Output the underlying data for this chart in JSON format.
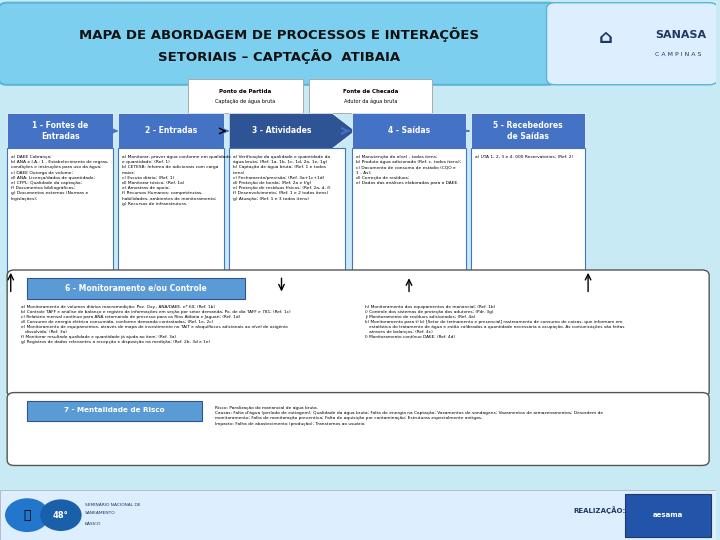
{
  "title_line1": "MAPA DE ABORDAGEM DE PROCESSOS E INTERAÇÕES",
  "title_line2": "SETORIAIS – CAPTAÇÃO  ATIBAIA",
  "bg_color": "#c8eaf5",
  "header_blue": "#4472c4",
  "header_dark_blue": "#2f5496",
  "arrow_blue": "#4472c4",
  "sanasa_blue": "#1f3864",
  "col1_text": "a) DAEE Cobrança;\nb) ANA e I.A.: 1 - Estabelecimento de regras,\ncondições e instruções para uso da água;\nc) DAEE Outorga de volume;\nd) ANA: Licença/dados de quantidade;\ne) CFPL: Qualidade da captação;\nf) Documentos bibliográficos;\ng) Documentos externos (Normas e\nlegislações);",
  "col2_text": "a) Monitorar, prover água conforme em qualidade\ne quantidade; (Ref. 1)\nb) CETESB: Informa de adicionais com carga\nmaior;\nc) Escuta diária; (Ref. 1)\nd) Monitorar tóxico; (Ref. 1a)\ne) Amostras de apoio;\nf) Recursos Humanos: competências,\nhabilidades, ambientes de monitoramento;\ng) Recursos de infraestrutura.",
  "col3_text": "a) Verificação da qualidade e quantidade da\nágua bruta; (Ref. 1a, 1b, 1c, 1d, 2a, 1e, 1g)\nb) Captação de água bruta; (Ref. 1 e todos\nitens)\nc) Fechamento/previsão; (Ref. 3a+1c+1d)\nd) Proteção de borda; (Ref. 2a e f/g)\ne) Proteção de resíduos físicos; (Ref. 2a, d, f)\nf) Desenvolvimento; (Ref. 1 e 2 todos itens)\ng) Atuação; (Ref. 1 e 3 todos itens)",
  "col4_text": "a) Manutenção do nível - todos itens;\nb) Produto água adicionado (Ref. c. todos itens);\nc) Documento de consumo de estádio (CQO e\n1 - As);\nd) Correção de resíduos;\ne) Dados das análises elaboradas para o DAEE.",
  "col5_text": "a) UTA 1, 2, 3 e 4: 000 Reservatórios; (Ref. 2)",
  "section6_label": "6 - Monitoramento e/ou Controle",
  "section6_text_left": "a) Monitoramento de volumes diários macromedição: Poz. Oxy., ANA/DAEE, nº 60; (Ref. 1b)\nb) Controle TAFF e análise de balanço e registro de informações em seção por setor demanda; Po. de dia TAFF e 781; (Ref. 1c)\nc) Relatório mensal contínuo para ANA retornando de processo para os Rios Atibaia e Jaguari; (Ref. 1d)\nd) Consumo de energia elétrica consumida, conforme demanda contratadas; (Ref. 1e, 2c)\ne) Monitoramento de equipamentos, através de mapa de investimento no TAIT e aloquiflocos adicionais ao nível de oxigênio\n   dissolvido; (Ref. 3a)\nf) Monitorar resultado qualidade e quantidade já ajuda ao item; (Ref. 3a)\ng) Registros de dados relevantes a recepção e disposição na medição; (Ref. 2b, 3d e 1e)",
  "section6_text_right": "h) Monitoramento dos equipamentos de manancial; (Ref. 1b)\ni) Controle dos sistemas de proteção dos adutores; (Pdr. 3g)\nj) Monitoramento de resíduos adicionados; (Ref. 4a)\nk) Monitoramento para t) b) [Setor de treinamento e presencial] rastreamento de consumo de caixas, que informam em\n   estatística do tratamento de água e estão calibrados a quantidade necessária a ocupação. As comunicações são feitas\n   através de balanços; (Ref. 4c)\nl) Monitoramento contínuo DAEE; (Ref. 4d)",
  "section7_label": "7 - Mentalidade de Risco",
  "section7_text": "Risco: Paralização do manancial de água bruta.\nCausas: Falta d'água (período de estiagem); Qualidade da água bruta; Falta de energia na Captação; Vazamentos de sondagens; Vazamentos de armazenamentos; Desordem de\nmonitoramento; Falta de monitoração preventiva; Falta de aquisição por contaminação; Estruturas especialmente antigas.\nImpacto: Falha de abastecimento (produção); Transtornos ao usuário.",
  "realiza_text": "REALIZAÇÃO:"
}
